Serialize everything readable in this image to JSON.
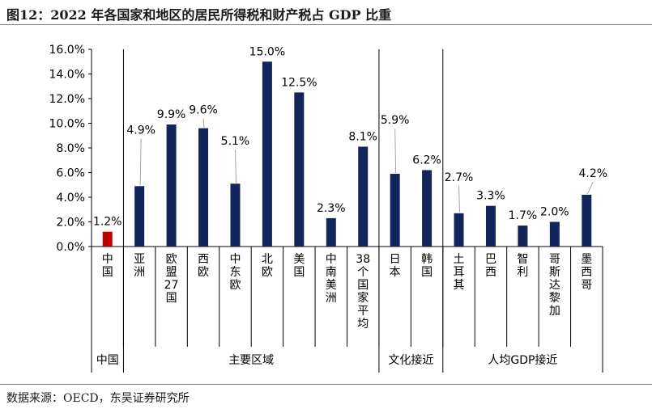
{
  "title": "图12：2022 年各国家和地区的居民所得税和财产税占 GDP 比重",
  "source": "数据来源：OECD，东吴证券研究所",
  "colors": {
    "bar": "#13265C",
    "china_bar": "#C00000",
    "axis": "#000000",
    "callout": "#A6A6A6"
  },
  "chart_data": {
    "type": "bar",
    "title": "图12：2022 年各国家和地区的居民所得税和财产税占 GDP 比重",
    "xlabel": "",
    "ylabel": "",
    "ylim": [
      0,
      16
    ],
    "y_ticks": [
      "0.0%",
      "2.0%",
      "4.0%",
      "6.0%",
      "8.0%",
      "10.0%",
      "12.0%",
      "14.0%",
      "16.0%"
    ],
    "grid": false,
    "categories": [
      "中国",
      "亚洲",
      "欧盟27国",
      "西欧",
      "中东欧",
      "北欧",
      "美国",
      "中南美洲",
      "38个国家平均",
      "日本",
      "韩国",
      "土耳其",
      "巴西",
      "智利",
      "哥斯达黎加",
      "墨西哥"
    ],
    "values": [
      1.2,
      4.9,
      9.9,
      9.6,
      5.1,
      15.0,
      12.5,
      2.3,
      8.1,
      5.9,
      6.2,
      2.7,
      3.3,
      1.7,
      2.0,
      4.2
    ],
    "data_labels": [
      "1.2%",
      "4.9%",
      "9.9%",
      "9.6%",
      "5.1%",
      "15.0%",
      "12.5%",
      "2.3%",
      "8.1%",
      "5.9%",
      "6.2%",
      "2.7%",
      "3.3%",
      "1.7%",
      "2.0%",
      "4.2%"
    ],
    "groups": [
      {
        "label": "中国",
        "start": 0,
        "end": 0
      },
      {
        "label": "主要区域",
        "start": 1,
        "end": 8
      },
      {
        "label": "文化接近",
        "start": 9,
        "end": 10
      },
      {
        "label": "人均GDP接近",
        "start": 11,
        "end": 15
      }
    ]
  }
}
